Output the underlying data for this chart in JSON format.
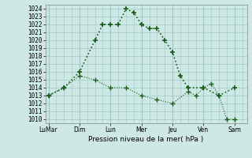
{
  "background_color": "#cde8e5",
  "grid_color": "#a0c8c4",
  "line_color": "#1a5c1a",
  "title": "Pression niveau de la mer( hPa )",
  "ylabel_values": [
    1010,
    1011,
    1012,
    1013,
    1014,
    1015,
    1016,
    1017,
    1018,
    1019,
    1020,
    1021,
    1022,
    1023,
    1024
  ],
  "ylim": [
    1009.5,
    1024.5
  ],
  "x_labels": [
    "LuMar",
    "Dim",
    "Lun",
    "Mer",
    "Jeu",
    "Ven",
    "Sam"
  ],
  "x_ticks": [
    0,
    2,
    4,
    6,
    8,
    10,
    12
  ],
  "xlim": [
    -0.2,
    12.8
  ],
  "series1_x": [
    0,
    1,
    2,
    3,
    3.5,
    4,
    4.5,
    5,
    5.5,
    6,
    6.5,
    7,
    7.5,
    8,
    8.5,
    9,
    10,
    11,
    12
  ],
  "series1_y": [
    1013,
    1014,
    1016,
    1020,
    1022,
    1022,
    1022,
    1024,
    1023.5,
    1022,
    1021.5,
    1021.5,
    1020,
    1018.5,
    1015.5,
    1014,
    1014,
    1013,
    1014
  ],
  "series2_x": [
    0,
    1,
    2,
    3,
    4,
    5,
    6,
    7,
    8,
    9,
    9.5,
    10,
    10.5,
    11,
    11.5,
    12
  ],
  "series2_y": [
    1013,
    1014,
    1015.5,
    1015,
    1014,
    1014,
    1013,
    1012.5,
    1012,
    1013.5,
    1013,
    1014,
    1014.5,
    1013,
    1010,
    1010
  ],
  "marker1": "+",
  "marker2": "+",
  "markersize": 4,
  "linewidth1": 1.2,
  "linewidth2": 0.8
}
